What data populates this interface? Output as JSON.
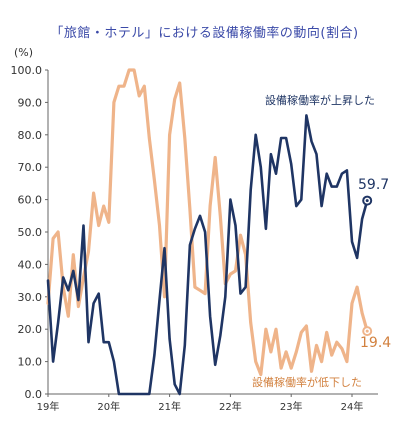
{
  "title": "「旅館・ホテル」における設備稼働率の動向(割合)",
  "unit": "(%)",
  "annotations": {
    "navy_label": "設備稼働率が上昇した",
    "orange_label": "設備稼働率が低下した",
    "navy_end_value": "59.7",
    "orange_end_value": "19.4"
  },
  "colors": {
    "navy": "#1f3564",
    "orange": "#efb48a",
    "orange_text": "#d2813f",
    "axis": "#666666",
    "grid": "#e3e3e3"
  },
  "chart_data": {
    "type": "line",
    "title": "「旅館・ホテル」における設備稼働率の動向(割合)",
    "ylabel": "(%)",
    "ylim": [
      0,
      100
    ],
    "yticks": [
      "0.0",
      "10.0",
      "20.0",
      "30.0",
      "40.0",
      "50.0",
      "60.0",
      "70.0",
      "80.0",
      "90.0",
      "100.0"
    ],
    "xticks": [
      "19年",
      "20年",
      "21年",
      "22年",
      "23年",
      "24年"
    ],
    "grid": false,
    "series": [
      {
        "name": "設備稼働率が上昇した",
        "color": "#1f3564",
        "values": [
          35,
          10,
          22,
          36,
          32,
          38,
          29,
          52,
          16,
          28,
          31,
          16,
          16,
          10,
          0,
          0,
          0,
          0,
          0,
          0,
          0,
          12,
          29,
          45,
          17,
          3,
          0,
          15,
          46,
          51,
          55,
          50,
          24,
          9,
          18,
          30,
          60,
          52,
          31,
          33,
          63,
          80,
          70,
          51,
          74,
          68,
          79,
          79,
          71,
          58,
          60,
          86,
          78,
          74,
          58,
          68,
          64,
          64,
          68,
          69,
          47,
          42,
          54,
          59.7
        ]
      },
      {
        "name": "設備稼働率が低下した",
        "color": "#efb48a",
        "values": [
          28,
          48,
          50,
          33,
          24,
          43,
          27,
          36,
          44,
          62,
          52,
          58,
          53,
          90,
          95,
          95,
          100,
          100,
          92,
          95,
          79,
          66,
          52,
          30,
          80,
          91,
          96,
          79,
          57,
          33,
          32,
          31,
          58,
          73,
          55,
          34,
          37,
          38,
          49,
          43,
          22,
          10,
          6,
          20,
          13,
          20,
          8,
          13,
          8,
          13,
          19,
          21,
          7,
          15,
          10,
          19,
          12,
          16,
          14,
          10,
          28,
          33,
          25,
          19.4
        ]
      }
    ]
  }
}
